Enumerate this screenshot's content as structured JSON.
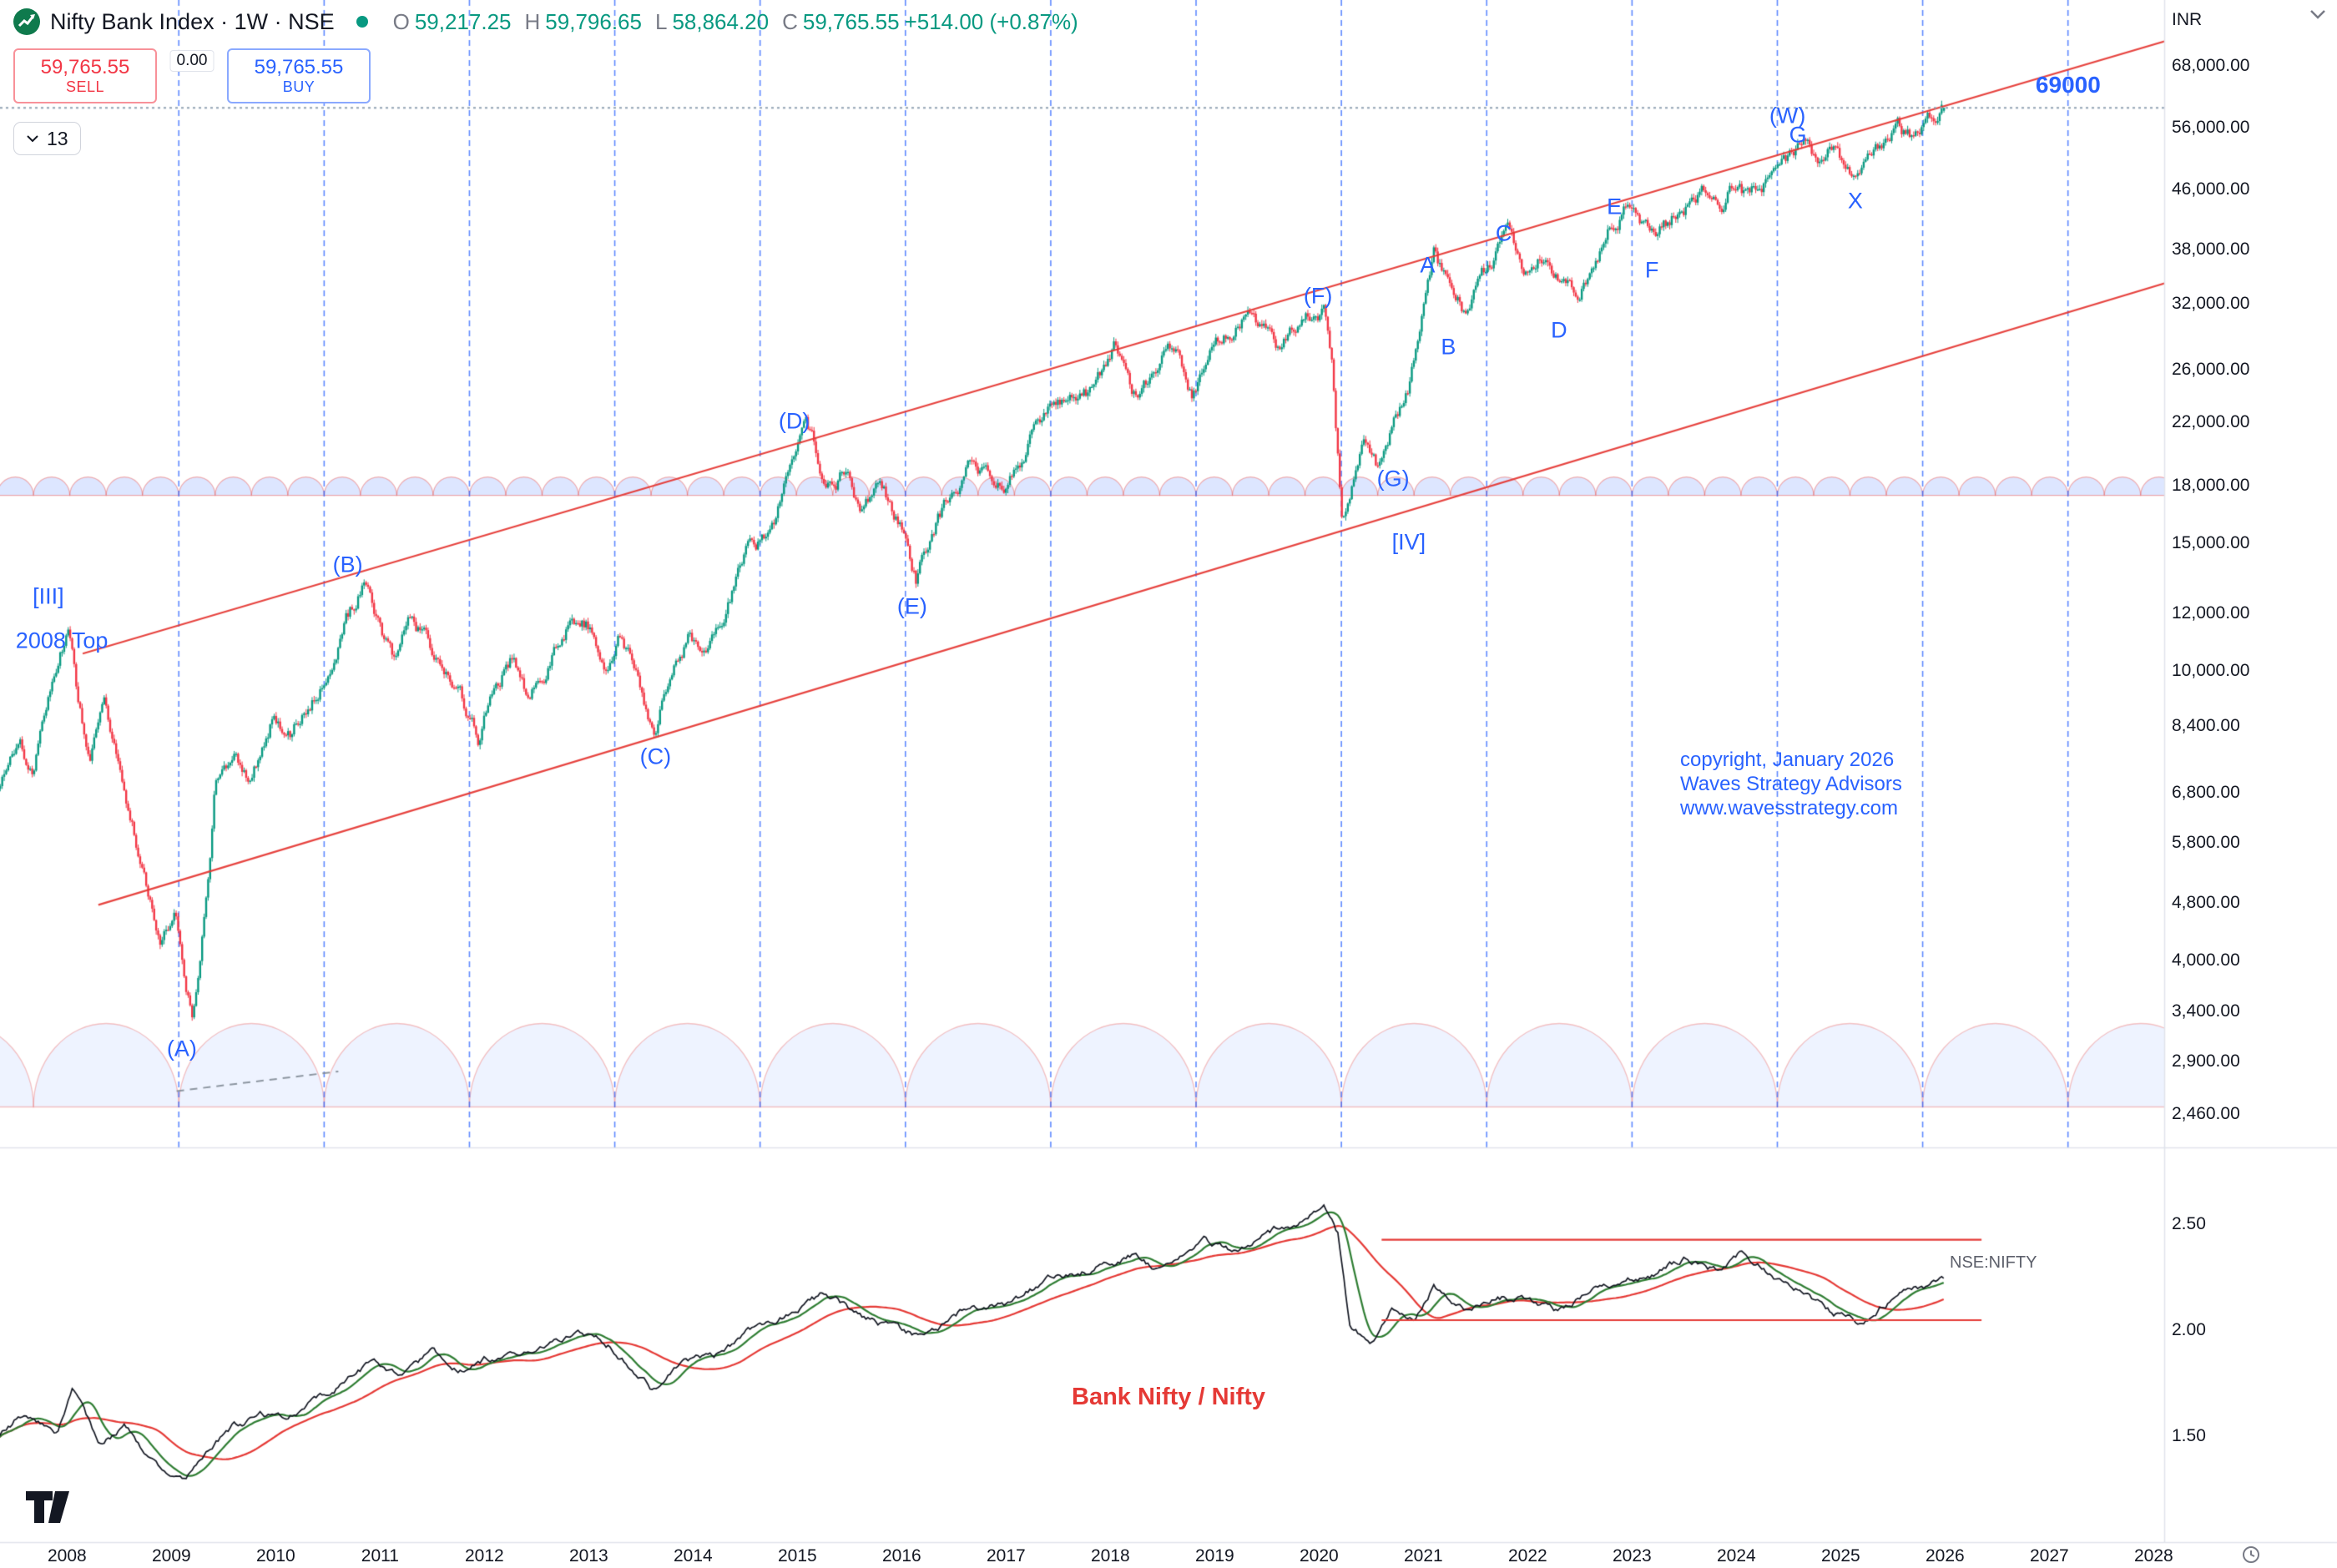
{
  "header": {
    "symbol_title": "Nifty Bank Index · 1W · NSE",
    "ohlc": {
      "o_label": "O",
      "o_value": "59,217.25",
      "h_label": "H",
      "h_value": "59,796.65",
      "l_label": "L",
      "l_value": "58,864.20",
      "c_label": "C",
      "c_value": "59,765.55",
      "change": "+514.00 (+0.87%)"
    }
  },
  "trade_widget": {
    "sell_price": "59,765.55",
    "sell_label": "SELL",
    "spread": "0.00",
    "buy_price": "59,765.55",
    "buy_label": "BUY"
  },
  "toolbar": {
    "bar_count": "13"
  },
  "axis": {
    "currency": "INR",
    "price_ticks": [
      {
        "label": "68,000.00",
        "value": 68000
      },
      {
        "label": "56,000.00",
        "value": 56000
      },
      {
        "label": "46,000.00",
        "value": 46000
      },
      {
        "label": "38,000.00",
        "value": 38000
      },
      {
        "label": "32,000.00",
        "value": 32000
      },
      {
        "label": "26,000.00",
        "value": 26000
      },
      {
        "label": "22,000.00",
        "value": 22000
      },
      {
        "label": "18,000.00",
        "value": 18000
      },
      {
        "label": "15,000.00",
        "value": 15000
      },
      {
        "label": "12,000.00",
        "value": 12000
      },
      {
        "label": "10,000.00",
        "value": 10000
      },
      {
        "label": "8,400.00",
        "value": 8400
      },
      {
        "label": "6,800.00",
        "value": 6800
      },
      {
        "label": "5,800.00",
        "value": 5800
      },
      {
        "label": "4,800.00",
        "value": 4800
      },
      {
        "label": "4,000.00",
        "value": 4000
      },
      {
        "label": "3,400.00",
        "value": 3400
      },
      {
        "label": "2,900.00",
        "value": 2900
      },
      {
        "label": "2,460.00",
        "value": 2460
      }
    ],
    "ratio_ticks": [
      {
        "label": "2.50",
        "value": 2.5
      },
      {
        "label": "2.00",
        "value": 2.0
      },
      {
        "label": "1.50",
        "value": 1.5
      }
    ],
    "years": [
      {
        "label": "2008",
        "year": 2008
      },
      {
        "label": "2009",
        "year": 2009
      },
      {
        "label": "2010",
        "year": 2010
      },
      {
        "label": "2011",
        "year": 2011
      },
      {
        "label": "2012",
        "year": 2012
      },
      {
        "label": "2013",
        "year": 2013
      },
      {
        "label": "2014",
        "year": 2014
      },
      {
        "label": "2015",
        "year": 2015
      },
      {
        "label": "2016",
        "year": 2016
      },
      {
        "label": "2017",
        "year": 2017
      },
      {
        "label": "2018",
        "year": 2018
      },
      {
        "label": "2019",
        "year": 2019
      },
      {
        "label": "2020",
        "year": 2020
      },
      {
        "label": "2021",
        "year": 2021
      },
      {
        "label": "2022",
        "year": 2022
      },
      {
        "label": "2023",
        "year": 2023
      },
      {
        "label": "2024",
        "year": 2024
      },
      {
        "label": "2025",
        "year": 2025
      },
      {
        "label": "2026",
        "year": 2026
      },
      {
        "label": "2027",
        "year": 2027
      },
      {
        "label": "2028",
        "year": 2028
      }
    ]
  },
  "annotations": {
    "wave_labels": [
      {
        "text": "[III]",
        "year": 2007.82,
        "price": 12700
      },
      {
        "text": "2008 Top",
        "year": 2007.95,
        "price": 11050
      },
      {
        "text": "(A)",
        "year": 2009.1,
        "price": 3030
      },
      {
        "text": "(B)",
        "year": 2010.69,
        "price": 14050
      },
      {
        "text": "(C)",
        "year": 2013.64,
        "price": 7640
      },
      {
        "text": "(D)",
        "year": 2014.97,
        "price": 22100
      },
      {
        "text": "(E)",
        "year": 2016.1,
        "price": 12300
      },
      {
        "text": "(F)",
        "year": 2019.99,
        "price": 32900
      },
      {
        "text": "(G)",
        "year": 2020.71,
        "price": 18450
      },
      {
        "text": "[IV]",
        "year": 2020.86,
        "price": 15060
      },
      {
        "text": "A",
        "year": 2021.04,
        "price": 36300
      },
      {
        "text": "B",
        "year": 2021.24,
        "price": 28000
      },
      {
        "text": "C",
        "year": 2021.77,
        "price": 40100
      },
      {
        "text": "D",
        "year": 2022.3,
        "price": 29500
      },
      {
        "text": "E",
        "year": 2022.83,
        "price": 43700
      },
      {
        "text": "F",
        "year": 2023.19,
        "price": 35700
      },
      {
        "text": "(W)",
        "year": 2024.49,
        "price": 58200
      },
      {
        "text": "G",
        "year": 2024.59,
        "price": 54800
      },
      {
        "text": "X",
        "year": 2025.14,
        "price": 44500
      }
    ],
    "target_label": {
      "text": "69000",
      "year": 2027.18,
      "price": 64200
    },
    "copyright_lines": [
      "copyright, January 2026",
      "Waves Strategy Advisors",
      "www.wavesstrategy.com"
    ],
    "pane2_title": "Bank Nifty / Nifty",
    "pane2_series_label": "NSE:NIFTY"
  },
  "chart_data": {
    "type": "candlestick",
    "title": "Nifty Bank Index weekly candles with Elliott-wave channel, cycle lines and Bank Nifty / Nifty ratio sub-chart",
    "y_scale": "log",
    "x_axis": {
      "start_year": 2007.34,
      "end_year": 2025.99,
      "unit": "year"
    },
    "last_candle": {
      "open": 59217.25,
      "high": 59796.65,
      "low": 58864.2,
      "close": 59765.55
    },
    "current_price_line": 59765.55,
    "price_anchors": [
      [
        2007.35,
        6900
      ],
      [
        2007.55,
        8300
      ],
      [
        2007.67,
        7300
      ],
      [
        2007.85,
        9800
      ],
      [
        2008.02,
        11700
      ],
      [
        2008.1,
        9300
      ],
      [
        2008.22,
        7600
      ],
      [
        2008.35,
        8900
      ],
      [
        2008.55,
        7200
      ],
      [
        2008.78,
        4900
      ],
      [
        2008.9,
        4300
      ],
      [
        2009.05,
        4600
      ],
      [
        2009.2,
        3400
      ],
      [
        2009.38,
        5600
      ],
      [
        2009.42,
        7100
      ],
      [
        2009.6,
        7600
      ],
      [
        2009.75,
        7200
      ],
      [
        2009.95,
        8600
      ],
      [
        2010.15,
        8300
      ],
      [
        2010.45,
        9600
      ],
      [
        2010.85,
        13300
      ],
      [
        2011.05,
        11000
      ],
      [
        2011.15,
        10200
      ],
      [
        2011.3,
        11600
      ],
      [
        2011.55,
        10500
      ],
      [
        2011.75,
        9600
      ],
      [
        2011.95,
        8100
      ],
      [
        2012.1,
        9600
      ],
      [
        2012.25,
        10500
      ],
      [
        2012.4,
        9500
      ],
      [
        2012.6,
        10200
      ],
      [
        2012.8,
        11500
      ],
      [
        2013.05,
        11400
      ],
      [
        2013.15,
        10300
      ],
      [
        2013.3,
        11500
      ],
      [
        2013.45,
        10300
      ],
      [
        2013.62,
        8400
      ],
      [
        2013.8,
        10200
      ],
      [
        2013.95,
        11300
      ],
      [
        2014.1,
        10300
      ],
      [
        2014.35,
        12800
      ],
      [
        2014.55,
        15100
      ],
      [
        2014.75,
        15500
      ],
      [
        2014.95,
        18700
      ],
      [
        2015.08,
        20600
      ],
      [
        2015.25,
        18500
      ],
      [
        2015.45,
        19000
      ],
      [
        2015.6,
        16800
      ],
      [
        2015.8,
        17600
      ],
      [
        2016.0,
        16000
      ],
      [
        2016.14,
        13500
      ],
      [
        2016.35,
        16500
      ],
      [
        2016.55,
        17800
      ],
      [
        2016.7,
        19600
      ],
      [
        2016.9,
        18000
      ],
      [
        2017.0,
        18200
      ],
      [
        2017.3,
        21800
      ],
      [
        2017.55,
        23800
      ],
      [
        2017.7,
        24300
      ],
      [
        2017.85,
        23900
      ],
      [
        2018.05,
        27500
      ],
      [
        2018.25,
        23900
      ],
      [
        2018.45,
        26500
      ],
      [
        2018.65,
        28300
      ],
      [
        2018.78,
        24600
      ],
      [
        2018.95,
        27200
      ],
      [
        2019.15,
        29300
      ],
      [
        2019.3,
        30700
      ],
      [
        2019.45,
        28800
      ],
      [
        2019.6,
        27600
      ],
      [
        2019.75,
        29600
      ],
      [
        2019.9,
        31500
      ],
      [
        2020.05,
        32300
      ],
      [
        2020.13,
        27000
      ],
      [
        2020.22,
        16300
      ],
      [
        2020.35,
        19500
      ],
      [
        2020.42,
        21300
      ],
      [
        2020.55,
        19400
      ],
      [
        2020.7,
        22200
      ],
      [
        2020.85,
        24500
      ],
      [
        2020.95,
        29500
      ],
      [
        2021.1,
        37300
      ],
      [
        2021.22,
        33900
      ],
      [
        2021.3,
        32000
      ],
      [
        2021.42,
        30800
      ],
      [
        2021.6,
        35200
      ],
      [
        2021.8,
        41600
      ],
      [
        2021.95,
        36000
      ],
      [
        2022.1,
        38300
      ],
      [
        2022.3,
        34500
      ],
      [
        2022.47,
        32300
      ],
      [
        2022.65,
        37300
      ],
      [
        2022.8,
        41000
      ],
      [
        2022.93,
        44000
      ],
      [
        2023.1,
        41500
      ],
      [
        2023.22,
        38700
      ],
      [
        2023.4,
        42000
      ],
      [
        2023.55,
        44500
      ],
      [
        2023.7,
        45500
      ],
      [
        2023.85,
        43000
      ],
      [
        2024.0,
        48200
      ],
      [
        2024.12,
        44900
      ],
      [
        2024.3,
        47500
      ],
      [
        2024.45,
        49500
      ],
      [
        2024.55,
        51500
      ],
      [
        2024.7,
        54400
      ],
      [
        2024.82,
        49800
      ],
      [
        2024.95,
        52200
      ],
      [
        2025.05,
        49500
      ],
      [
        2025.17,
        47800
      ],
      [
        2025.3,
        51500
      ],
      [
        2025.45,
        55400
      ],
      [
        2025.55,
        57400
      ],
      [
        2025.65,
        55000
      ],
      [
        2025.78,
        56500
      ],
      [
        2025.9,
        58000
      ],
      [
        2025.98,
        59765
      ]
    ],
    "channel_lines": [
      {
        "from": [
          2008.15,
          10600
        ],
        "to": [
          2028.2,
          74500
        ]
      },
      {
        "from": [
          2008.3,
          4780
        ],
        "to": [
          2028.2,
          34600
        ]
      }
    ],
    "cycle_lines": {
      "start_year": 2009.071,
      "period_years": 1.3929,
      "count": 14
    },
    "decorations": {
      "dome_base_price": 2520,
      "scallop_base_price": 17500
    },
    "dashed_line": {
      "from": [
        2009.05,
        2650
      ],
      "to": [
        2010.6,
        2820
      ]
    },
    "pane2": {
      "type": "line",
      "label": "NSE:NIFTY",
      "ma_fast_weeks": 13,
      "ma_slow_weeks": 47,
      "resistance": 2.43,
      "support": 2.05,
      "range_start": 2020.6,
      "range_end": 2026.35,
      "ratio_anchors": [
        [
          2007.34,
          1.5
        ],
        [
          2007.6,
          1.62
        ],
        [
          2007.9,
          1.5
        ],
        [
          2008.05,
          1.7
        ],
        [
          2008.3,
          1.46
        ],
        [
          2008.55,
          1.55
        ],
        [
          2008.8,
          1.38
        ],
        [
          2009.1,
          1.28
        ],
        [
          2009.35,
          1.42
        ],
        [
          2009.6,
          1.55
        ],
        [
          2009.85,
          1.6
        ],
        [
          2010.1,
          1.57
        ],
        [
          2010.5,
          1.7
        ],
        [
          2010.9,
          1.84
        ],
        [
          2011.2,
          1.78
        ],
        [
          2011.5,
          1.9
        ],
        [
          2011.75,
          1.83
        ],
        [
          2012.1,
          1.88
        ],
        [
          2012.5,
          1.94
        ],
        [
          2012.9,
          2.0
        ],
        [
          2013.2,
          1.93
        ],
        [
          2013.6,
          1.73
        ],
        [
          2013.85,
          1.82
        ],
        [
          2014.2,
          1.87
        ],
        [
          2014.6,
          2.02
        ],
        [
          2014.95,
          2.1
        ],
        [
          2015.25,
          2.17
        ],
        [
          2015.6,
          2.06
        ],
        [
          2016.0,
          1.99
        ],
        [
          2016.2,
          1.96
        ],
        [
          2016.6,
          2.1
        ],
        [
          2017.0,
          2.12
        ],
        [
          2017.4,
          2.24
        ],
        [
          2017.8,
          2.29
        ],
        [
          2018.2,
          2.35
        ],
        [
          2018.5,
          2.27
        ],
        [
          2018.9,
          2.42
        ],
        [
          2019.2,
          2.36
        ],
        [
          2019.5,
          2.47
        ],
        [
          2019.8,
          2.51
        ],
        [
          2020.05,
          2.57
        ],
        [
          2020.18,
          2.45
        ],
        [
          2020.3,
          2.0
        ],
        [
          2020.5,
          1.95
        ],
        [
          2020.7,
          2.1
        ],
        [
          2020.9,
          2.04
        ],
        [
          2021.1,
          2.22
        ],
        [
          2021.4,
          2.1
        ],
        [
          2021.7,
          2.18
        ],
        [
          2022.0,
          2.14
        ],
        [
          2022.3,
          2.09
        ],
        [
          2022.6,
          2.17
        ],
        [
          2022.9,
          2.24
        ],
        [
          2023.2,
          2.27
        ],
        [
          2023.5,
          2.34
        ],
        [
          2023.8,
          2.29
        ],
        [
          2024.05,
          2.37
        ],
        [
          2024.3,
          2.29
        ],
        [
          2024.6,
          2.19
        ],
        [
          2024.9,
          2.09
        ],
        [
          2025.15,
          2.04
        ],
        [
          2025.45,
          2.14
        ],
        [
          2025.7,
          2.19
        ],
        [
          2025.99,
          2.24
        ]
      ]
    }
  }
}
